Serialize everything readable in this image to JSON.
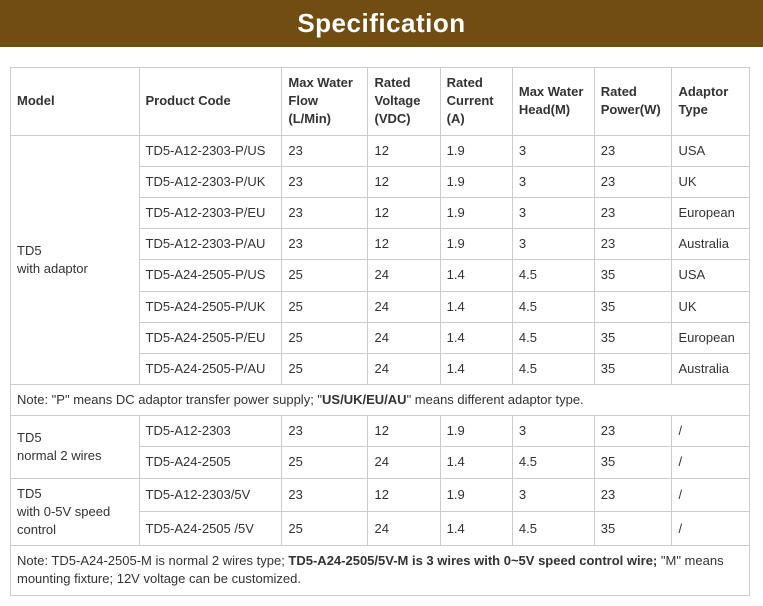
{
  "title": "Specification",
  "colors": {
    "title_bg": "#704e13",
    "title_text": "#ffffff",
    "border": "#cccccc",
    "body_text": "#333333",
    "bg": "#ffffff"
  },
  "headers": [
    "Model",
    "Product Code",
    "Max Water Flow (L/Min)",
    "Rated Voltage (VDC)",
    "Rated Current (A)",
    "Max Water Head(M)",
    "Rated Power(W)",
    "Adaptor Type"
  ],
  "group1": {
    "model": "TD5\nwith adaptor",
    "rows": [
      [
        "TD5-A12-2303-P/US",
        "23",
        "12",
        "1.9",
        "3",
        "23",
        "USA"
      ],
      [
        "TD5-A12-2303-P/UK",
        "23",
        "12",
        "1.9",
        "3",
        "23",
        "UK"
      ],
      [
        "TD5-A12-2303-P/EU",
        "23",
        "12",
        "1.9",
        "3",
        "23",
        "European"
      ],
      [
        "TD5-A12-2303-P/AU",
        "23",
        "12",
        "1.9",
        "3",
        "23",
        "Australia"
      ],
      [
        "TD5-A24-2505-P/US",
        "25",
        "24",
        "1.4",
        "4.5",
        "35",
        "USA"
      ],
      [
        "TD5-A24-2505-P/UK",
        "25",
        "24",
        "1.4",
        "4.5",
        "35",
        "UK"
      ],
      [
        "TD5-A24-2505-P/EU",
        "25",
        "24",
        "1.4",
        "4.5",
        "35",
        "European"
      ],
      [
        "TD5-A24-2505-P/AU",
        "25",
        "24",
        "1.4",
        "4.5",
        "35",
        "Australia"
      ]
    ]
  },
  "note1_pre": "Note: \"P\" means DC adaptor transfer power supply; \"",
  "note1_bold": "US/UK/EU/AU",
  "note1_post": "\" means different adaptor type.",
  "group2": {
    "model": "TD5\nnormal 2 wires",
    "rows": [
      [
        "TD5-A12-2303",
        "23",
        "12",
        "1.9",
        "3",
        "23",
        "/"
      ],
      [
        "TD5-A24-2505",
        "25",
        "24",
        "1.4",
        "4.5",
        "35",
        "/"
      ]
    ]
  },
  "group3": {
    "model": "TD5\nwith 0-5V speed control",
    "rows": [
      [
        "TD5-A12-2303/5V",
        "23",
        "12",
        "1.9",
        "3",
        "23",
        "/"
      ],
      [
        "TD5-A24-2505 /5V",
        "25",
        "24",
        "1.4",
        "4.5",
        "35",
        "/"
      ]
    ]
  },
  "note2_pre": "Note: TD5-A24-2505-M is normal 2 wires type; ",
  "note2_bold": "TD5-A24-2505/5V-M is 3 wires with 0~5V speed control wire;",
  "note2_post": " \"M\" means mounting fixture; 12V voltage can be customized."
}
